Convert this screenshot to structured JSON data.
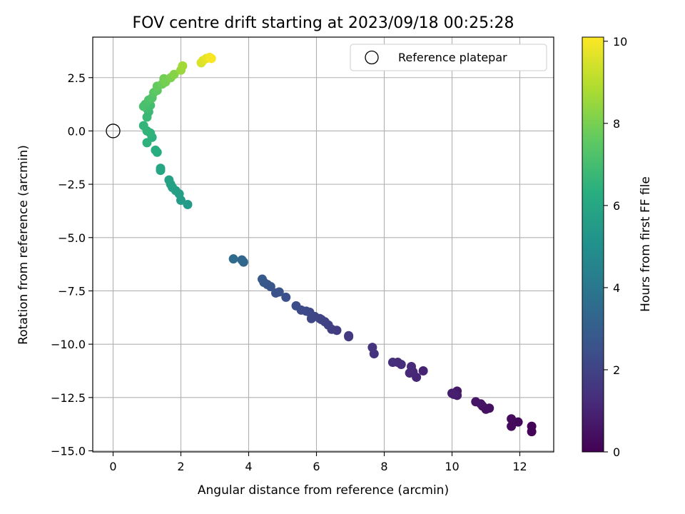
{
  "chart_data": {
    "type": "scatter",
    "title": "FOV centre drift starting at 2023/09/18 00:25:28",
    "xlabel": "Angular distance from reference (arcmin)",
    "ylabel": "Rotation from reference (arcmin)",
    "xlim": [
      -0.6,
      13.0
    ],
    "ylim": [
      -15.05,
      4.4
    ],
    "x_ticks": [
      0,
      2,
      4,
      6,
      8,
      10,
      12
    ],
    "x_tick_labels": [
      "0",
      "2",
      "4",
      "6",
      "8",
      "10",
      "12"
    ],
    "y_ticks": [
      2.5,
      0.0,
      -2.5,
      -5.0,
      -7.5,
      -10.0,
      -12.5,
      -15.0
    ],
    "y_tick_labels": [
      "2.5",
      "0.0",
      "−2.5",
      "−5.0",
      "−7.5",
      "−10.0",
      "−12.5",
      "−15.0"
    ],
    "grid": true,
    "legend": {
      "position": "top-right",
      "entries": [
        "Reference platepar"
      ]
    },
    "colorbar": {
      "label": "Hours from first FF file",
      "range": [
        0,
        10.1
      ],
      "ticks": [
        0,
        2,
        4,
        6,
        8,
        10
      ],
      "tick_labels": [
        "0",
        "2",
        "4",
        "6",
        "8",
        "10"
      ],
      "colormap": "viridis"
    },
    "reference": {
      "name": "Reference platepar",
      "x": 0,
      "y": 0
    },
    "series": [
      {
        "points": [
          [
            12.35,
            -14.1,
            0.05
          ],
          [
            12.35,
            -13.85,
            0.1
          ],
          [
            11.95,
            -13.65,
            0.2
          ],
          [
            11.75,
            -13.85,
            0.25
          ],
          [
            11.75,
            -13.5,
            0.3
          ],
          [
            11.1,
            -13.0,
            0.4
          ],
          [
            11.0,
            -13.05,
            0.45
          ],
          [
            10.9,
            -12.9,
            0.5
          ],
          [
            10.85,
            -12.8,
            0.55
          ],
          [
            10.7,
            -12.7,
            0.6
          ],
          [
            10.15,
            -12.2,
            0.7
          ],
          [
            10.15,
            -12.4,
            0.75
          ],
          [
            10.0,
            -12.3,
            0.8
          ],
          [
            10.05,
            -12.35,
            0.85
          ],
          [
            9.15,
            -11.25,
            1.0
          ],
          [
            8.95,
            -11.55,
            1.05
          ],
          [
            8.85,
            -11.3,
            1.1
          ],
          [
            8.75,
            -11.35,
            1.15
          ],
          [
            8.8,
            -11.05,
            1.2
          ],
          [
            8.5,
            -10.95,
            1.25
          ],
          [
            8.4,
            -10.85,
            1.3
          ],
          [
            8.25,
            -10.85,
            1.35
          ],
          [
            7.7,
            -10.45,
            1.45
          ],
          [
            7.65,
            -10.15,
            1.5
          ],
          [
            6.95,
            -9.6,
            1.65
          ],
          [
            6.95,
            -9.65,
            1.7
          ],
          [
            6.6,
            -9.35,
            1.8
          ],
          [
            6.45,
            -9.3,
            1.85
          ],
          [
            6.35,
            -9.1,
            1.9
          ],
          [
            6.25,
            -8.95,
            1.95
          ],
          [
            6.15,
            -8.85,
            2.0
          ],
          [
            6.1,
            -8.8,
            2.05
          ],
          [
            5.95,
            -8.7,
            2.1
          ],
          [
            5.85,
            -8.8,
            2.15
          ],
          [
            5.8,
            -8.5,
            2.2
          ],
          [
            5.7,
            -8.45,
            2.25
          ],
          [
            5.55,
            -8.4,
            2.3
          ],
          [
            5.4,
            -8.2,
            2.35
          ],
          [
            5.1,
            -7.8,
            2.5
          ],
          [
            4.9,
            -7.55,
            2.55
          ],
          [
            4.8,
            -7.6,
            2.6
          ],
          [
            4.65,
            -7.3,
            2.65
          ],
          [
            4.55,
            -7.2,
            2.7
          ],
          [
            4.45,
            -7.1,
            2.75
          ],
          [
            4.4,
            -6.95,
            2.8
          ],
          [
            3.85,
            -6.15,
            3.3
          ],
          [
            3.8,
            -6.05,
            3.35
          ],
          [
            3.55,
            -6.0,
            3.5
          ],
          [
            2.2,
            -3.45,
            5.5
          ],
          [
            2.0,
            -3.25,
            5.55
          ],
          [
            1.95,
            -2.95,
            5.6
          ],
          [
            1.85,
            -2.8,
            5.65
          ],
          [
            1.75,
            -2.65,
            5.7
          ],
          [
            1.7,
            -2.5,
            5.75
          ],
          [
            1.65,
            -2.3,
            5.8
          ],
          [
            1.4,
            -1.85,
            5.9
          ],
          [
            1.4,
            -1.75,
            5.95
          ],
          [
            1.3,
            -1.0,
            6.2
          ],
          [
            1.25,
            -0.9,
            6.25
          ],
          [
            1.15,
            -0.3,
            6.4
          ],
          [
            1.0,
            -0.55,
            6.45
          ],
          [
            1.1,
            -0.1,
            6.5
          ],
          [
            1.0,
            0.0,
            6.55
          ],
          [
            0.9,
            0.25,
            6.6
          ],
          [
            1.0,
            0.65,
            6.75
          ],
          [
            1.05,
            0.9,
            6.8
          ],
          [
            1.0,
            1.05,
            6.9
          ],
          [
            1.1,
            1.2,
            7.0
          ],
          [
            0.95,
            1.25,
            7.05
          ],
          [
            0.9,
            1.15,
            7.1
          ],
          [
            1.05,
            1.45,
            7.2
          ],
          [
            1.15,
            1.55,
            7.3
          ],
          [
            1.2,
            1.8,
            7.45
          ],
          [
            1.3,
            1.9,
            7.55
          ],
          [
            1.3,
            2.1,
            7.65
          ],
          [
            1.45,
            2.2,
            7.8
          ],
          [
            1.5,
            2.45,
            7.9
          ],
          [
            1.55,
            2.3,
            7.95
          ],
          [
            1.7,
            2.5,
            8.05
          ],
          [
            1.8,
            2.65,
            8.2
          ],
          [
            2.0,
            2.85,
            8.5
          ],
          [
            2.05,
            3.05,
            8.65
          ],
          [
            2.6,
            3.2,
            9.5
          ],
          [
            2.65,
            3.3,
            9.6
          ],
          [
            2.75,
            3.4,
            9.75
          ],
          [
            2.85,
            3.45,
            9.9
          ],
          [
            2.9,
            3.4,
            10.0
          ]
        ]
      }
    ]
  }
}
